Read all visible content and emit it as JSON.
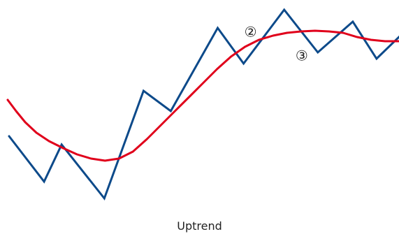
{
  "chart_data": {
    "type": "line",
    "title": "",
    "xlabel": "",
    "ylabel": "",
    "caption": "Uptrend",
    "grid": false,
    "legend": "none",
    "x_range": [
      0,
      57
    ],
    "y_range": [
      0,
      33.5
    ],
    "series": [
      {
        "color": "#0d4a8a",
        "points": [
          [
            1.3,
            14.0
          ],
          [
            6.3,
            7.5
          ],
          [
            8.8,
            12.8
          ],
          [
            14.9,
            5.1
          ],
          [
            20.5,
            20.5
          ],
          [
            24.4,
            17.6
          ],
          [
            31.1,
            29.5
          ],
          [
            34.8,
            24.4
          ],
          [
            40.6,
            32.1
          ],
          [
            45.4,
            26.0
          ],
          [
            50.4,
            30.4
          ],
          [
            53.8,
            25.1
          ],
          [
            57.1,
            28.3
          ]
        ]
      },
      {
        "color": "#e0001b",
        "points": [
          [
            1.1,
            19.2
          ],
          [
            2.3,
            17.6
          ],
          [
            3.6,
            16.0
          ],
          [
            5.2,
            14.5
          ],
          [
            7.0,
            13.3
          ],
          [
            9.0,
            12.3
          ],
          [
            11.0,
            11.4
          ],
          [
            13.0,
            10.8
          ],
          [
            15.0,
            10.5
          ],
          [
            17.0,
            10.8
          ],
          [
            19.0,
            11.8
          ],
          [
            21.0,
            13.6
          ],
          [
            23.0,
            15.6
          ],
          [
            25.0,
            17.6
          ],
          [
            27.0,
            19.6
          ],
          [
            29.0,
            21.6
          ],
          [
            31.0,
            23.6
          ],
          [
            33.0,
            25.4
          ],
          [
            35.0,
            26.8
          ],
          [
            37.0,
            27.8
          ],
          [
            39.0,
            28.4
          ],
          [
            41.0,
            28.8
          ],
          [
            43.0,
            29.0
          ],
          [
            45.0,
            29.1
          ],
          [
            47.0,
            29.0
          ],
          [
            49.0,
            28.8
          ],
          [
            51.0,
            28.2
          ],
          [
            53.0,
            27.8
          ],
          [
            55.0,
            27.6
          ],
          [
            57.1,
            27.6
          ]
        ]
      }
    ],
    "annotations": [
      {
        "text": "②",
        "x": 35.8,
        "y": 28.8
      },
      {
        "text": "③",
        "x": 43.1,
        "y": 25.4
      }
    ]
  }
}
